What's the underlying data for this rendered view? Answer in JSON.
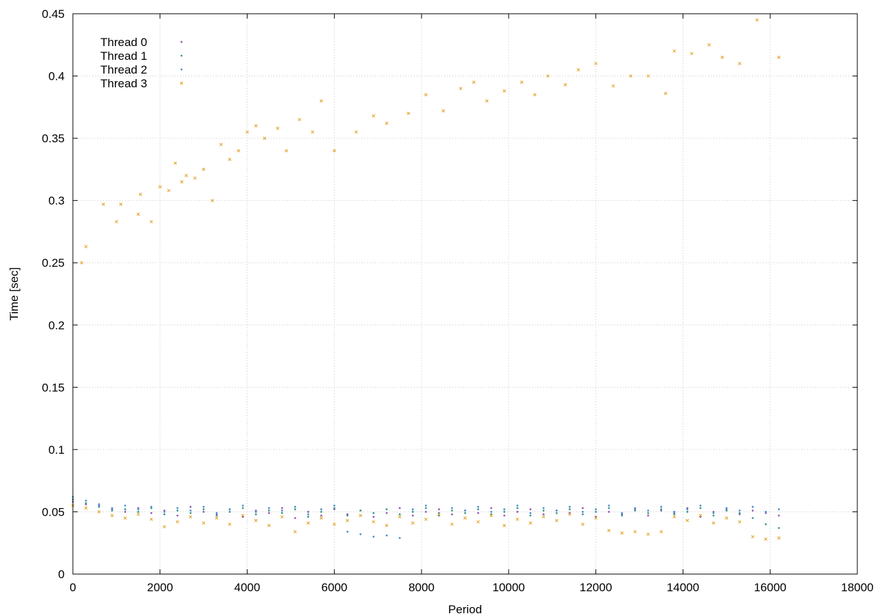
{
  "chart_data": {
    "type": "scatter",
    "title": "",
    "xlabel": "Period",
    "ylabel": "Time [sec]",
    "xlim": [
      0,
      18000
    ],
    "ylim": [
      0,
      0.45
    ],
    "xticks": [
      0,
      2000,
      4000,
      6000,
      8000,
      10000,
      12000,
      14000,
      16000,
      18000
    ],
    "yticks": [
      0,
      0.05,
      0.1,
      0.15,
      0.2,
      0.25,
      0.3,
      0.35,
      0.4,
      0.45
    ],
    "xtick_labels": [
      "0",
      "2000",
      "4000",
      "6000",
      "8000",
      "10000",
      "12000",
      "14000",
      "16000",
      "18000"
    ],
    "ytick_labels": [
      "0",
      "0.05",
      "0.1",
      "0.15",
      "0.2",
      "0.25",
      "0.3",
      "0.35",
      "0.4",
      "0.45"
    ],
    "grid": true,
    "legend_position": "top-left",
    "series": [
      {
        "name": "Thread 0",
        "color": "#9a58b8",
        "marker": "dot",
        "x": [
          0,
          300,
          600,
          900,
          1200,
          1500,
          1800,
          2100,
          2400,
          2700,
          3000,
          3300,
          3600,
          3900,
          4200,
          4500,
          4800,
          5100,
          5400,
          5700,
          6000,
          6300,
          6600,
          6900,
          7200,
          7500,
          7800,
          8100,
          8400,
          8700,
          9000,
          9300,
          9600,
          9900,
          10200,
          10500,
          10800,
          11100,
          11400,
          11700,
          12000,
          12300,
          12600,
          12900,
          13200,
          13500,
          13800,
          14100,
          14400,
          14700,
          15000,
          15300,
          15600,
          15900,
          16200
        ],
        "y": [
          0.058,
          0.056,
          0.055,
          0.052,
          0.05,
          0.053,
          0.049,
          0.051,
          0.047,
          0.054,
          0.05,
          0.048,
          0.052,
          0.046,
          0.051,
          0.049,
          0.053,
          0.045,
          0.05,
          0.047,
          0.052,
          0.048,
          0.051,
          0.046,
          0.049,
          0.053,
          0.047,
          0.05,
          0.052,
          0.048,
          0.051,
          0.049,
          0.053,
          0.047,
          0.05,
          0.052,
          0.048,
          0.051,
          0.049,
          0.053,
          0.046,
          0.05,
          0.048,
          0.052,
          0.047,
          0.051,
          0.049,
          0.053,
          0.046,
          0.05,
          0.052,
          0.048,
          0.051,
          0.049,
          0.047
        ]
      },
      {
        "name": "Thread 1",
        "color": "#3a9a8a",
        "marker": "dot",
        "x": [
          0,
          300,
          600,
          900,
          1200,
          1500,
          1800,
          2100,
          2400,
          2700,
          3000,
          3300,
          3600,
          3900,
          4200,
          4500,
          4800,
          5100,
          5400,
          5700,
          6000,
          6300,
          6600,
          6900,
          7200,
          7500,
          7800,
          8100,
          8400,
          8700,
          9000,
          9300,
          9600,
          9900,
          10200,
          10500,
          10800,
          11100,
          11400,
          11700,
          12000,
          12300,
          12600,
          12900,
          13200,
          13500,
          13800,
          14100,
          14400,
          14700,
          15000,
          15300,
          15600,
          15900,
          16200
        ],
        "y": [
          0.06,
          0.057,
          0.054,
          0.051,
          0.052,
          0.05,
          0.053,
          0.048,
          0.051,
          0.049,
          0.052,
          0.047,
          0.05,
          0.053,
          0.048,
          0.051,
          0.049,
          0.052,
          0.046,
          0.05,
          0.053,
          0.047,
          0.051,
          0.049,
          0.052,
          0.048,
          0.05,
          0.053,
          0.047,
          0.051,
          0.049,
          0.052,
          0.048,
          0.05,
          0.053,
          0.047,
          0.051,
          0.049,
          0.052,
          0.048,
          0.05,
          0.053,
          0.047,
          0.051,
          0.049,
          0.052,
          0.048,
          0.05,
          0.053,
          0.047,
          0.051,
          0.049,
          0.045,
          0.04,
          0.037
        ]
      },
      {
        "name": "Thread 2",
        "color": "#4a90d0",
        "marker": "dot",
        "x": [
          0,
          300,
          600,
          900,
          1200,
          1500,
          1800,
          2100,
          2400,
          2700,
          3000,
          3300,
          3600,
          3900,
          4200,
          4500,
          4800,
          5100,
          5400,
          5700,
          6000,
          6300,
          6600,
          6900,
          7200,
          7500,
          7800,
          8100,
          8400,
          8700,
          9000,
          9300,
          9600,
          9900,
          10200,
          10500,
          10800,
          11100,
          11400,
          11700,
          12000,
          12300,
          12600,
          12900,
          13200,
          13500,
          13800,
          14100,
          14400,
          14700,
          15000,
          15300,
          15600,
          15900,
          16200
        ],
        "y": [
          0.062,
          0.059,
          0.056,
          0.053,
          0.055,
          0.052,
          0.054,
          0.05,
          0.053,
          0.051,
          0.054,
          0.049,
          0.052,
          0.055,
          0.05,
          0.053,
          0.051,
          0.054,
          0.048,
          0.052,
          0.055,
          0.034,
          0.032,
          0.03,
          0.031,
          0.029,
          0.052,
          0.055,
          0.049,
          0.053,
          0.051,
          0.054,
          0.05,
          0.052,
          0.055,
          0.049,
          0.053,
          0.051,
          0.054,
          0.05,
          0.052,
          0.055,
          0.049,
          0.053,
          0.051,
          0.054,
          0.05,
          0.052,
          0.055,
          0.049,
          0.053,
          0.051,
          0.054,
          0.05,
          0.052
        ]
      },
      {
        "name": "Thread 3",
        "color": "#e0a020",
        "marker": "x",
        "x": [
          0,
          300,
          600,
          900,
          1200,
          1500,
          1800,
          2100,
          2400,
          2700,
          3000,
          3300,
          3600,
          3900,
          4200,
          4500,
          4800,
          5100,
          5400,
          5700,
          6000,
          6300,
          6600,
          6900,
          7200,
          7500,
          7800,
          8100,
          8400,
          8700,
          9000,
          9300,
          9600,
          9900,
          10200,
          10500,
          10800,
          11100,
          11400,
          11700,
          12000,
          12300,
          12600,
          12900,
          13200,
          13500,
          13800,
          14100,
          14400,
          14700,
          15000,
          15300,
          15600,
          15900,
          16200
        ],
        "y": [
          0.055,
          0.053,
          0.05,
          0.047,
          0.045,
          0.048,
          0.044,
          0.038,
          0.042,
          0.046,
          0.041,
          0.045,
          0.04,
          0.047,
          0.043,
          0.039,
          0.046,
          0.034,
          0.041,
          0.045,
          0.04,
          0.043,
          0.047,
          0.042,
          0.039,
          0.046,
          0.041,
          0.044,
          0.048,
          0.04,
          0.045,
          0.042,
          0.047,
          0.039,
          0.044,
          0.041,
          0.046,
          0.043,
          0.048,
          0.04,
          0.045,
          0.035,
          0.033,
          0.034,
          0.032,
          0.034,
          0.046,
          0.043,
          0.047,
          0.041,
          0.045,
          0.042,
          0.03,
          0.028,
          0.029
        ]
      },
      {
        "name": "",
        "color": "#e0a020",
        "marker": "x",
        "outliers": true,
        "x": [
          200,
          300,
          700,
          1000,
          1100,
          1500,
          1550,
          1800,
          2000,
          2200,
          2350,
          2500,
          2600,
          2800,
          3000,
          3200,
          3400,
          3600,
          3800,
          4000,
          4200,
          4400,
          4700,
          4900,
          5200,
          5500,
          5700,
          6000,
          6500,
          6900,
          7200,
          7700,
          8100,
          8500,
          8900,
          9200,
          9500,
          9900,
          10300,
          10600,
          10900,
          11300,
          11600,
          12000,
          12400,
          12800,
          13200,
          13600,
          13800,
          14200,
          14600,
          14900,
          15300,
          15700,
          16200
        ],
        "y": [
          0.25,
          0.263,
          0.297,
          0.283,
          0.297,
          0.289,
          0.305,
          0.283,
          0.311,
          0.308,
          0.33,
          0.315,
          0.32,
          0.318,
          0.325,
          0.3,
          0.345,
          0.333,
          0.34,
          0.355,
          0.36,
          0.35,
          0.358,
          0.34,
          0.365,
          0.355,
          0.38,
          0.34,
          0.355,
          0.368,
          0.362,
          0.37,
          0.385,
          0.372,
          0.39,
          0.395,
          0.38,
          0.388,
          0.395,
          0.385,
          0.4,
          0.393,
          0.405,
          0.41,
          0.392,
          0.4,
          0.4,
          0.386,
          0.42,
          0.418,
          0.425,
          0.415,
          0.41,
          0.445,
          0.415
        ]
      }
    ]
  }
}
